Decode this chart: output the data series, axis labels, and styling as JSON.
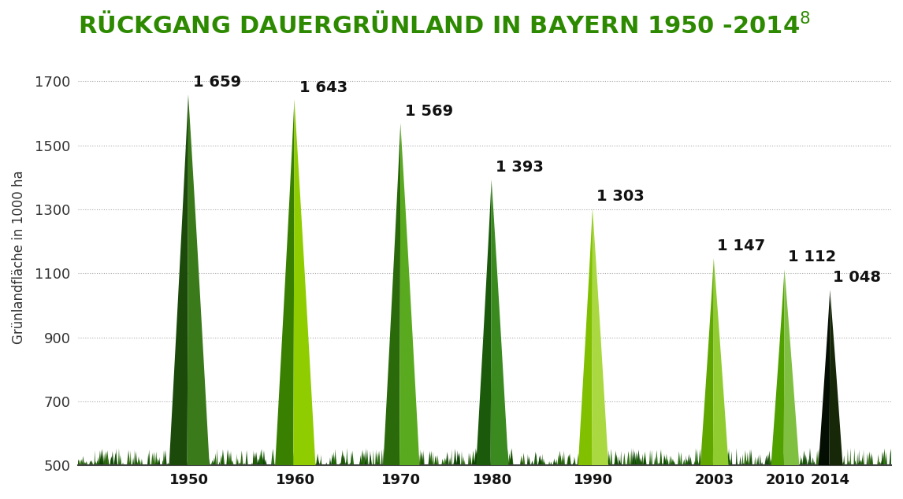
{
  "title": "RÜCKGANG DAUERGRÜNLAND IN BAYERN 1950 -2014",
  "title_superscript": "8",
  "ylabel": "Grünlandfläche in 1000 ha",
  "title_color": "#2d8a00",
  "background_color": "#ffffff",
  "years": [
    1950,
    1960,
    1970,
    1980,
    1990,
    2003,
    2010,
    2014
  ],
  "values": [
    1659,
    1643,
    1569,
    1393,
    1303,
    1147,
    1112,
    1048
  ],
  "spike_colors": [
    {
      "dark": "#1b4a0a",
      "light": "#3a7a1a"
    },
    {
      "dark": "#3a8000",
      "light": "#8fcc00"
    },
    {
      "dark": "#2a6a0a",
      "light": "#5aaa20"
    },
    {
      "dark": "#1a5a0a",
      "light": "#3a8a20"
    },
    {
      "dark": "#80c000",
      "light": "#aad840"
    },
    {
      "dark": "#60a800",
      "light": "#90cc30"
    },
    {
      "dark": "#50a000",
      "light": "#80c040"
    },
    {
      "dark": "#050e02",
      "light": "#162808"
    }
  ],
  "ylim": [
    500,
    1800
  ],
  "yticks": [
    500,
    700,
    900,
    1100,
    1300,
    1500,
    1700
  ],
  "grass_base": 500,
  "label_fontsize": 14,
  "title_fontsize": 22,
  "axis_label_fontsize": 12,
  "tick_label_fontsize": 13,
  "x_min": 1940.5,
  "x_max": 2021.0,
  "year_xpos": [
    1951.5,
    1962.0,
    1972.5,
    1981.5,
    1991.5,
    2003.5,
    2010.5,
    2015.0
  ]
}
